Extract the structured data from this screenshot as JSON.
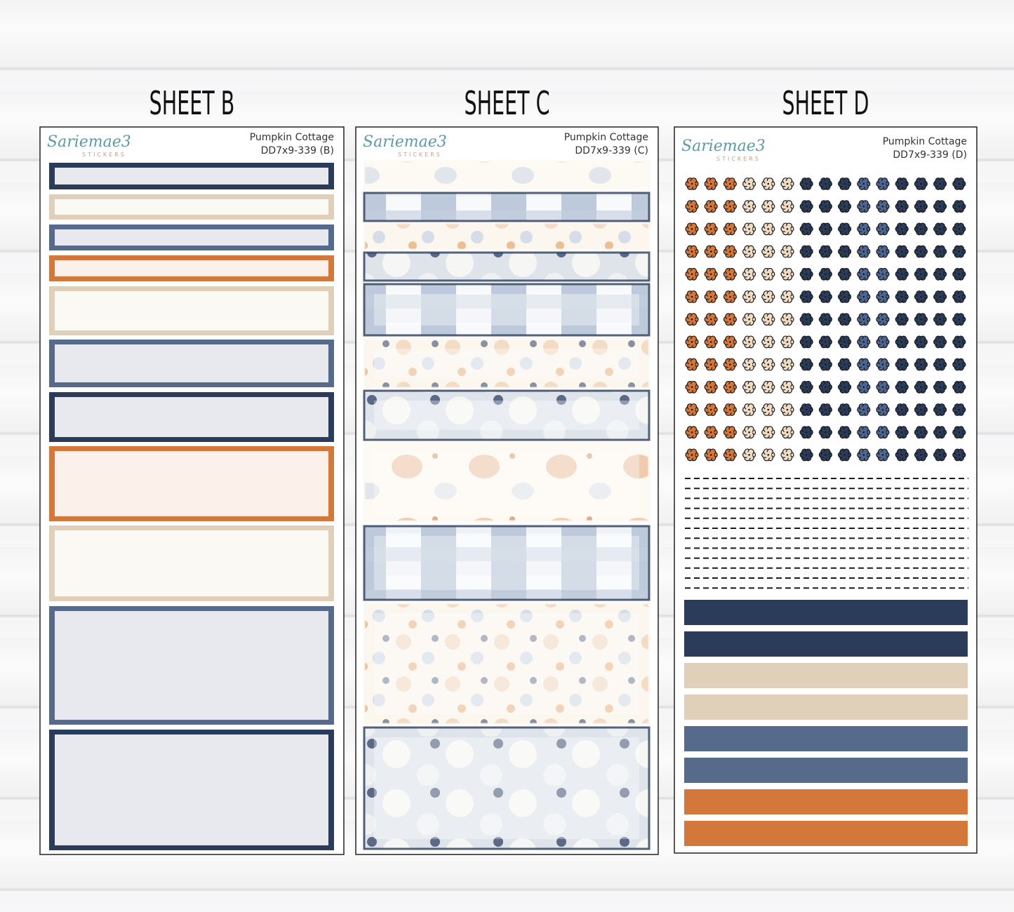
{
  "sheets": [
    {
      "heading": "SHEET B",
      "brand": "Sariemae3",
      "brand_sub": "STICKERS",
      "name": "Pumpkin Cottage",
      "code": "DD7x9-339 (B)"
    },
    {
      "heading": "SHEET C",
      "brand": "Sariemae3",
      "brand_sub": "STICKERS",
      "name": "Pumpkin Cottage",
      "code": "DD7x9-339 (C)"
    },
    {
      "heading": "SHEET D",
      "brand": "Sariemae3",
      "brand_sub": "STICKERS",
      "name": "Pumpkin Cottage",
      "code": "DD7x9-339 (D)"
    }
  ]
}
